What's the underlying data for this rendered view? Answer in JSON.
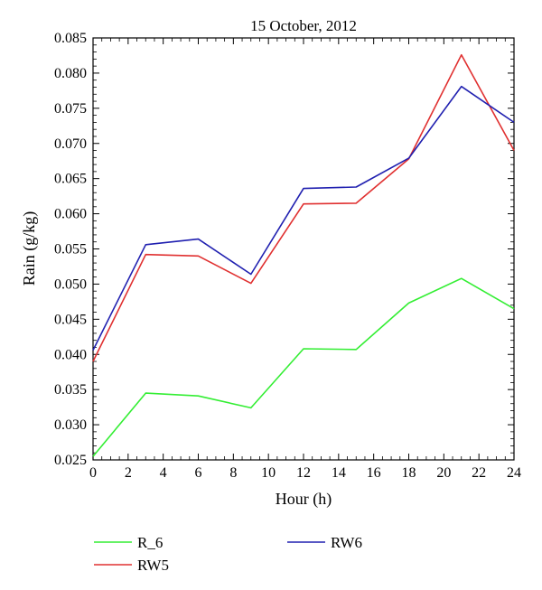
{
  "chart_data": {
    "type": "line",
    "title": "15 October, 2012",
    "xlabel": "Hour (h)",
    "ylabel": "Rain (g/kg)",
    "xlim": [
      0,
      24
    ],
    "ylim": [
      0.025,
      0.085
    ],
    "x_ticks": [
      "0",
      "2",
      "4",
      "6",
      "8",
      "10",
      "12",
      "14",
      "16",
      "18",
      "20",
      "22",
      "24"
    ],
    "y_ticks": [
      "0.025",
      "0.030",
      "0.035",
      "0.040",
      "0.045",
      "0.050",
      "0.055",
      "0.060",
      "0.065",
      "0.070",
      "0.075",
      "0.080",
      "0.085"
    ],
    "grid": false,
    "legend_position": "bottom",
    "x": [
      0,
      3,
      6,
      9,
      12,
      15,
      18,
      21,
      24
    ],
    "series": [
      {
        "name": "R_6",
        "color": "#33ee33",
        "values": [
          0.0255,
          0.0345,
          0.0341,
          0.0324,
          0.0408,
          0.0407,
          0.0473,
          0.0508,
          0.0465
        ]
      },
      {
        "name": "RW5",
        "color": "#e03030",
        "values": [
          0.039,
          0.0542,
          0.054,
          0.0501,
          0.0614,
          0.0615,
          0.0678,
          0.0826,
          0.069
        ]
      },
      {
        "name": "RW6",
        "color": "#2020b0",
        "values": [
          0.0406,
          0.0556,
          0.0564,
          0.0514,
          0.0636,
          0.0638,
          0.0679,
          0.0781,
          0.073
        ]
      }
    ]
  }
}
